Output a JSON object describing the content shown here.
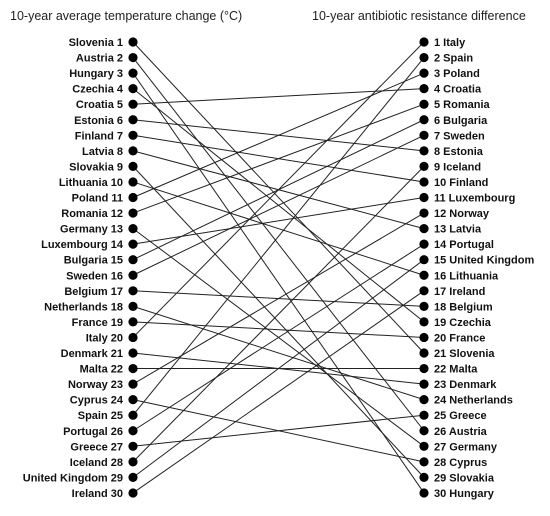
{
  "chart_data": {
    "type": "slope",
    "left_title": "10-year average temperature change (°C)",
    "right_title": "10-year antibiotic resistance difference",
    "left": [
      "Slovenia",
      "Austria",
      "Hungary",
      "Czechia",
      "Croatia",
      "Estonia",
      "Finland",
      "Latvia",
      "Slovakia",
      "Lithuania",
      "Poland",
      "Romania",
      "Germany",
      "Luxembourg",
      "Bulgaria",
      "Sweden",
      "Belgium",
      "Netherlands",
      "France",
      "Italy",
      "Denmark",
      "Malta",
      "Norway",
      "Cyprus",
      "Spain",
      "Portugal",
      "Greece",
      "Iceland",
      "United Kingdom",
      "Ireland"
    ],
    "right": [
      "Italy",
      "Spain",
      "Poland",
      "Croatia",
      "Romania",
      "Bulgaria",
      "Sweden",
      "Estonia",
      "Iceland",
      "Finland",
      "Luxembourg",
      "Norway",
      "Latvia",
      "Portugal",
      "United Kingdom",
      "Lithuania",
      "Ireland",
      "Belgium",
      "Czechia",
      "France",
      "Slovenia",
      "Malta",
      "Denmark",
      "Netherlands",
      "Greece",
      "Austria",
      "Germany",
      "Cyprus",
      "Slovakia",
      "Hungary"
    ],
    "line_color": "#222222",
    "dot_color": "#000000"
  }
}
